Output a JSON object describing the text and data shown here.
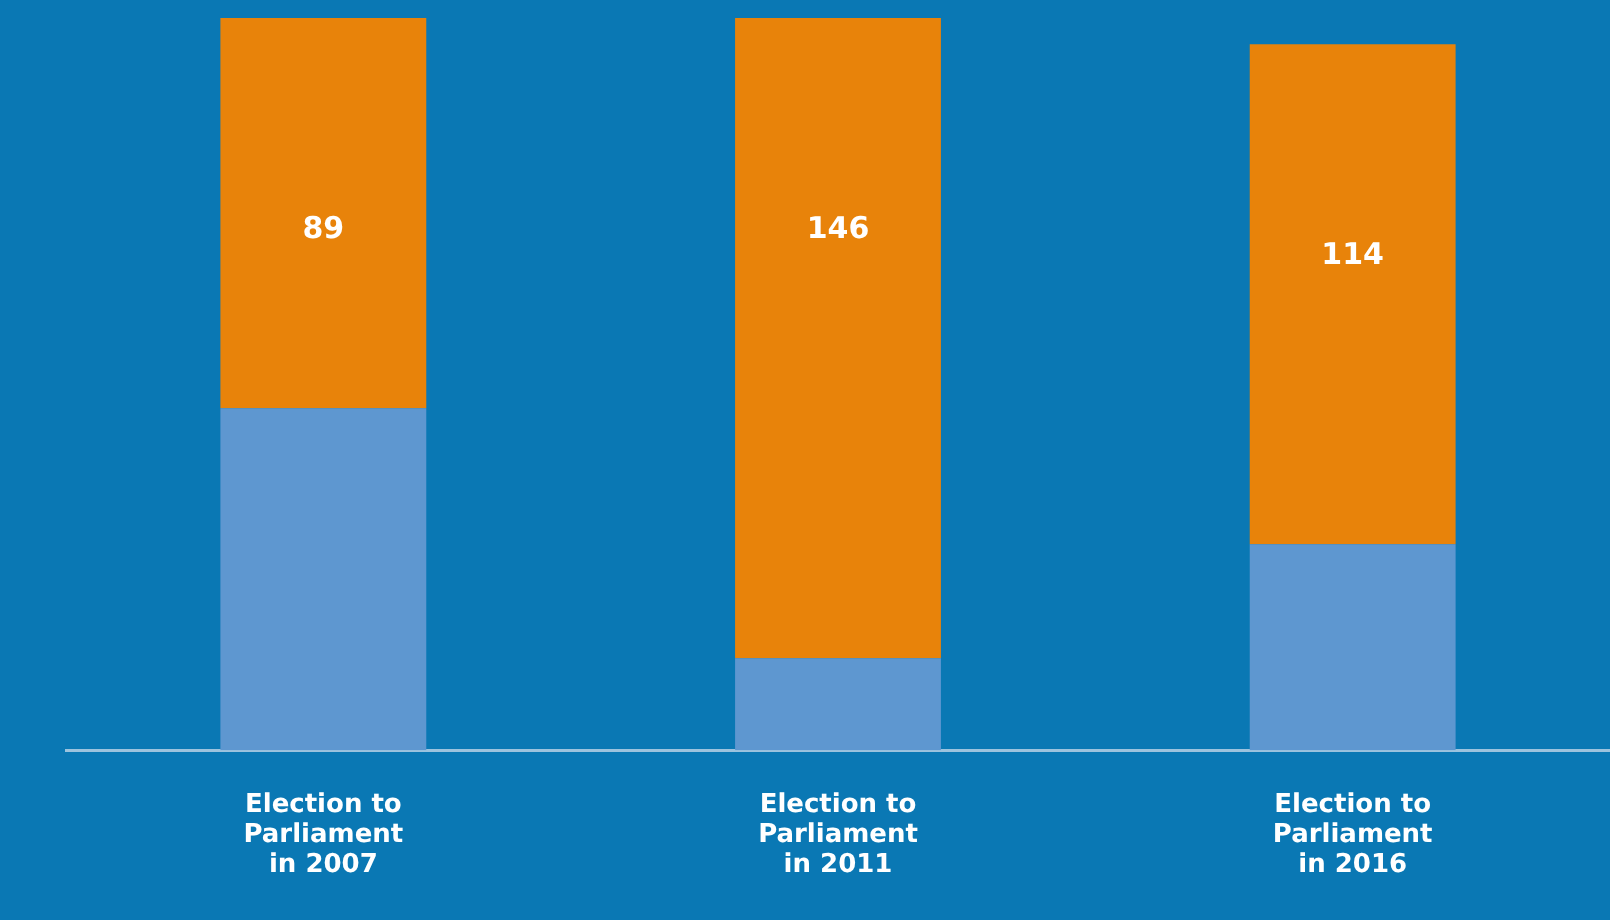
{
  "chart_data": {
    "type": "bar",
    "stacked": true,
    "categories": [
      "Election to Parliament in 2007",
      "Election to Parliament in 2011",
      "Election to Parliament in 2016"
    ],
    "ylim": [
      0,
      167
    ],
    "tick_labels": "x",
    "grid": false,
    "legend": false,
    "series": [
      {
        "color": "#5e97d0",
        "values": [
          78,
          21,
          47
        ]
      },
      {
        "color": "#e8830a",
        "values": [
          89,
          146,
          114
        ],
        "value_labels": [
          "89",
          "146",
          "114"
        ]
      }
    ]
  }
}
